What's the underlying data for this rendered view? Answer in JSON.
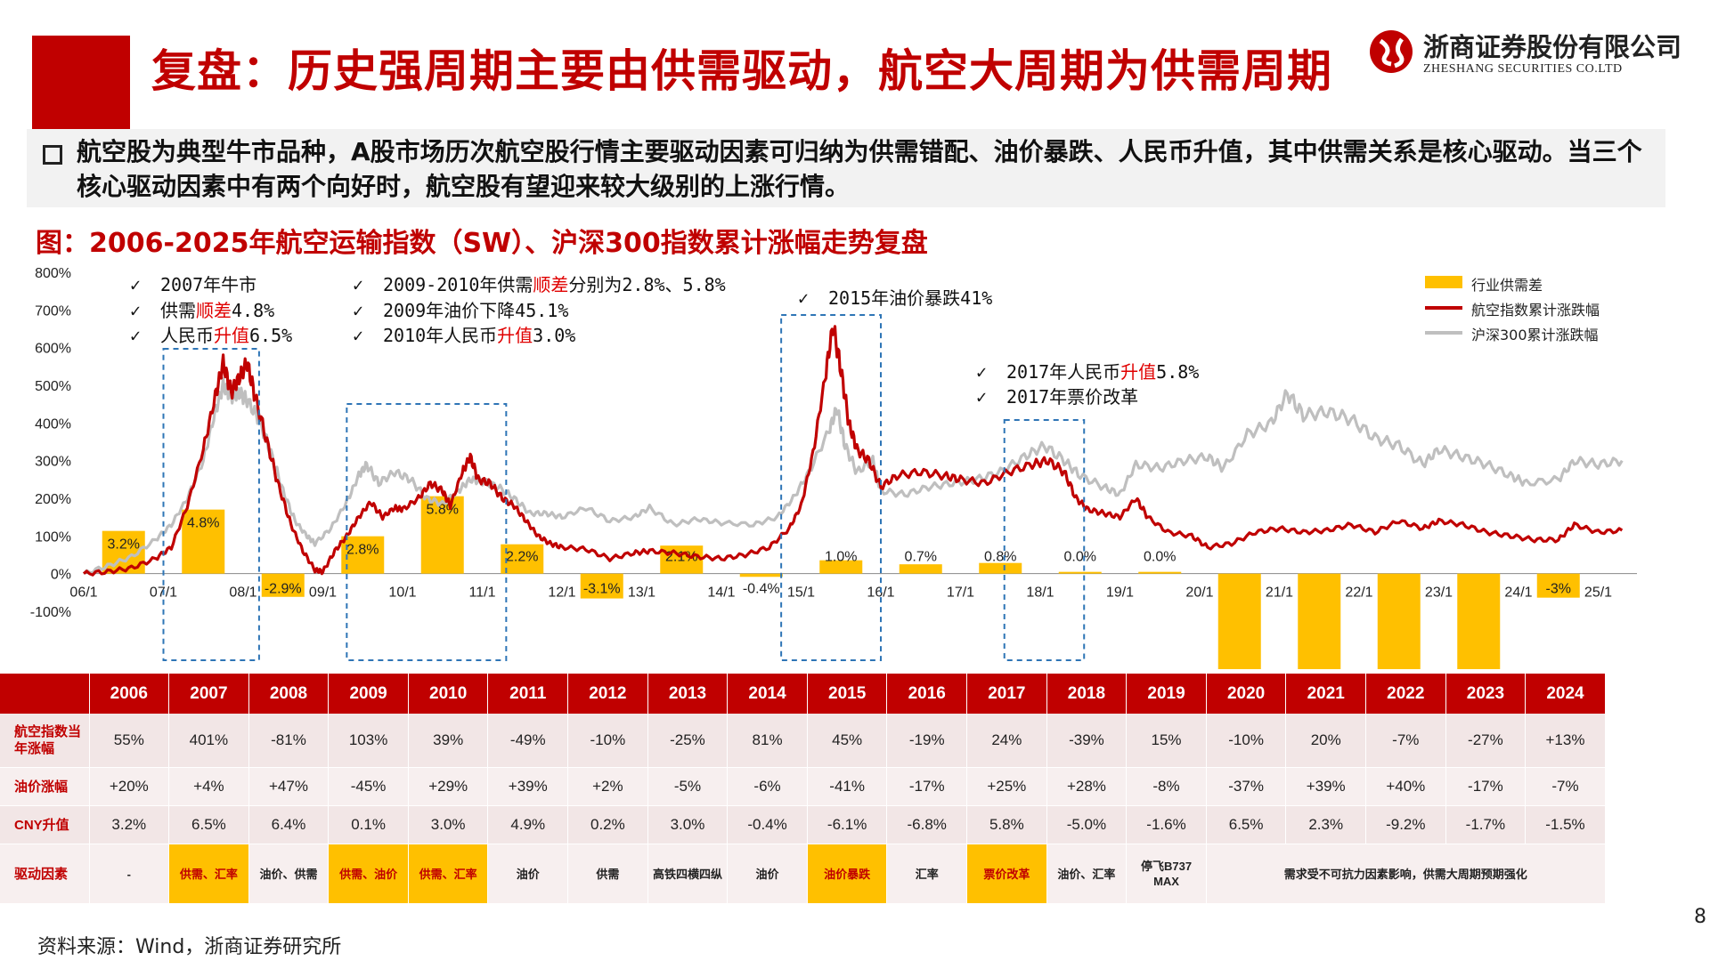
{
  "header": {
    "title": "复盘：历史强周期主要由供需驱动，航空大周期为供需周期",
    "logo_cn": "浙商证券股份有限公司",
    "logo_en": "ZHESHANG SECURITIES CO.LTD"
  },
  "summary": {
    "text": "航空股为典型牛市品种，A股市场历次航空股行情主要驱动因素可归纳为供需错配、油价暴跌、人民币升值，其中供需关系是核心驱动。当三个核心驱动因素中有两个向好时，航空股有望迎来较大级别的上涨行情。"
  },
  "figure": {
    "title": "图：2006-2025年航空运输指数（SW）、沪深300指数累计涨幅走势复盘"
  },
  "annotations": {
    "a2007_1": "2007年牛市",
    "a2007_2a": "供需",
    "a2007_2b": "顺差",
    "a2007_2c": "4.8%",
    "a2007_3a": "人民币",
    "a2007_3b": "升值",
    "a2007_3c": "6.5%",
    "a2009_1a": "2009-2010年供需",
    "a2009_1b": "顺差",
    "a2009_1c": "分别为2.8%、5.8%",
    "a2009_2": "2009年油价下降45.1%",
    "a2009_3a": "2010年人民币",
    "a2009_3b": "升值",
    "a2009_3c": "3.0%",
    "a2015_1": "2015年油价暴跌41%",
    "a2017_1a": "2017年人民币",
    "a2017_1b": "升值",
    "a2017_1c": "5.8%",
    "a2017_2": "2017年票价改革",
    "check": "✓"
  },
  "legend": {
    "supply": "行业供需差",
    "airline": "航空指数累计涨跌幅",
    "hs300": "沪深300累计涨跌幅"
  },
  "colors": {
    "red": "#C00000",
    "bar": "#FFC000",
    "gray": "#BFBFBF",
    "blue": "#2E75B6"
  },
  "chart_data": {
    "type": "line",
    "ylim": [
      -100,
      800
    ],
    "yticks": [
      "800%",
      "700%",
      "600%",
      "500%",
      "400%",
      "300%",
      "200%",
      "100%",
      "0%",
      "-100%"
    ],
    "xticks": [
      "06/1",
      "07/1",
      "08/1",
      "09/1",
      "10/1",
      "11/1",
      "12/1",
      "13/1",
      "14/1",
      "15/1",
      "16/1",
      "17/1",
      "18/1",
      "19/1",
      "20/1",
      "21/1",
      "22/1",
      "23/1",
      "24/1",
      "25/1"
    ],
    "supply_gap": {
      "name": "行业供需差",
      "years": [
        2006,
        2007,
        2008,
        2009,
        2010,
        2011,
        2012,
        2013,
        2014,
        2015,
        2016,
        2017,
        2018,
        2019,
        2020,
        2021,
        2022,
        2023,
        2024
      ],
      "labels": [
        "3.2%",
        "4.8%",
        "-2.9%",
        "2.8%",
        "5.8%",
        "2.2%",
        "-3.1%",
        "2.1%",
        "-0.4%",
        "1.0%",
        "0.7%",
        "0.8%",
        "0.0%",
        "0.0%",
        "",
        "",
        "",
        "",
        "-3%"
      ]
    },
    "series": [
      {
        "name": "航空指数累计涨跌幅",
        "points": [
          [
            2006.0,
            0
          ],
          [
            2006.3,
            5
          ],
          [
            2006.6,
            15
          ],
          [
            2006.9,
            40
          ],
          [
            2007.1,
            70
          ],
          [
            2007.3,
            180
          ],
          [
            2007.5,
            330
          ],
          [
            2007.65,
            470
          ],
          [
            2007.75,
            560
          ],
          [
            2007.85,
            480
          ],
          [
            2007.95,
            520
          ],
          [
            2008.05,
            560
          ],
          [
            2008.15,
            470
          ],
          [
            2008.3,
            350
          ],
          [
            2008.45,
            230
          ],
          [
            2008.6,
            130
          ],
          [
            2008.75,
            60
          ],
          [
            2008.9,
            10
          ],
          [
            2009.0,
            5
          ],
          [
            2009.15,
            60
          ],
          [
            2009.3,
            100
          ],
          [
            2009.45,
            150
          ],
          [
            2009.6,
            190
          ],
          [
            2009.75,
            150
          ],
          [
            2009.9,
            175
          ],
          [
            2010.0,
            170
          ],
          [
            2010.2,
            200
          ],
          [
            2010.35,
            240
          ],
          [
            2010.5,
            220
          ],
          [
            2010.6,
            180
          ],
          [
            2010.75,
            270
          ],
          [
            2010.85,
            310
          ],
          [
            2010.95,
            250
          ],
          [
            2011.1,
            240
          ],
          [
            2011.25,
            200
          ],
          [
            2011.4,
            180
          ],
          [
            2011.55,
            140
          ],
          [
            2011.7,
            100
          ],
          [
            2011.85,
            80
          ],
          [
            2012.0,
            70
          ],
          [
            2012.3,
            65
          ],
          [
            2012.6,
            40
          ],
          [
            2012.9,
            55
          ],
          [
            2013.1,
            60
          ],
          [
            2013.4,
            55
          ],
          [
            2013.7,
            45
          ],
          [
            2014.0,
            40
          ],
          [
            2014.3,
            50
          ],
          [
            2014.6,
            70
          ],
          [
            2014.85,
            120
          ],
          [
            2015.0,
            180
          ],
          [
            2015.15,
            320
          ],
          [
            2015.3,
            520
          ],
          [
            2015.4,
            660
          ],
          [
            2015.5,
            540
          ],
          [
            2015.6,
            400
          ],
          [
            2015.7,
            330
          ],
          [
            2015.85,
            300
          ],
          [
            2016.0,
            230
          ],
          [
            2016.2,
            260
          ],
          [
            2016.5,
            270
          ],
          [
            2016.8,
            260
          ],
          [
            2017.0,
            250
          ],
          [
            2017.3,
            240
          ],
          [
            2017.6,
            270
          ],
          [
            2017.9,
            290
          ],
          [
            2018.1,
            300
          ],
          [
            2018.3,
            270
          ],
          [
            2018.45,
            200
          ],
          [
            2018.6,
            170
          ],
          [
            2018.8,
            160
          ],
          [
            2019.0,
            150
          ],
          [
            2019.2,
            200
          ],
          [
            2019.35,
            150
          ],
          [
            2019.6,
            110
          ],
          [
            2019.9,
            100
          ],
          [
            2020.1,
            70
          ],
          [
            2020.4,
            80
          ],
          [
            2020.7,
            110
          ],
          [
            2021.0,
            120
          ],
          [
            2021.3,
            110
          ],
          [
            2021.6,
            115
          ],
          [
            2021.9,
            130
          ],
          [
            2022.2,
            110
          ],
          [
            2022.5,
            140
          ],
          [
            2022.8,
            120
          ],
          [
            2023.0,
            140
          ],
          [
            2023.3,
            130
          ],
          [
            2023.6,
            110
          ],
          [
            2023.9,
            100
          ],
          [
            2024.2,
            90
          ],
          [
            2024.5,
            90
          ],
          [
            2024.7,
            130
          ],
          [
            2025.0,
            110
          ],
          [
            2025.3,
            115
          ]
        ]
      },
      {
        "name": "沪深300累计涨跌幅",
        "points": [
          [
            2006.0,
            0
          ],
          [
            2006.3,
            20
          ],
          [
            2006.6,
            45
          ],
          [
            2006.9,
            90
          ],
          [
            2007.1,
            130
          ],
          [
            2007.3,
            200
          ],
          [
            2007.5,
            300
          ],
          [
            2007.65,
            430
          ],
          [
            2007.75,
            500
          ],
          [
            2007.85,
            470
          ],
          [
            2007.95,
            480
          ],
          [
            2008.05,
            460
          ],
          [
            2008.2,
            410
          ],
          [
            2008.35,
            320
          ],
          [
            2008.5,
            220
          ],
          [
            2008.65,
            140
          ],
          [
            2008.8,
            100
          ],
          [
            2008.9,
            80
          ],
          [
            2009.1,
            120
          ],
          [
            2009.3,
            190
          ],
          [
            2009.45,
            260
          ],
          [
            2009.55,
            290
          ],
          [
            2009.7,
            240
          ],
          [
            2009.9,
            270
          ],
          [
            2010.1,
            250
          ],
          [
            2010.3,
            200
          ],
          [
            2010.5,
            185
          ],
          [
            2010.7,
            220
          ],
          [
            2010.85,
            250
          ],
          [
            2011.0,
            245
          ],
          [
            2011.2,
            230
          ],
          [
            2011.4,
            200
          ],
          [
            2011.6,
            160
          ],
          [
            2011.8,
            160
          ],
          [
            2012.0,
            150
          ],
          [
            2012.3,
            175
          ],
          [
            2012.6,
            140
          ],
          [
            2012.9,
            150
          ],
          [
            2013.1,
            175
          ],
          [
            2013.4,
            130
          ],
          [
            2013.7,
            145
          ],
          [
            2014.0,
            135
          ],
          [
            2014.4,
            130
          ],
          [
            2014.7,
            150
          ],
          [
            2014.9,
            200
          ],
          [
            2015.1,
            270
          ],
          [
            2015.35,
            380
          ],
          [
            2015.45,
            440
          ],
          [
            2015.55,
            340
          ],
          [
            2015.7,
            270
          ],
          [
            2015.9,
            300
          ],
          [
            2016.0,
            220
          ],
          [
            2016.3,
            210
          ],
          [
            2016.6,
            230
          ],
          [
            2016.9,
            240
          ],
          [
            2017.2,
            250
          ],
          [
            2017.5,
            270
          ],
          [
            2017.8,
            310
          ],
          [
            2018.05,
            340
          ],
          [
            2018.3,
            300
          ],
          [
            2018.5,
            260
          ],
          [
            2018.8,
            230
          ],
          [
            2019.0,
            210
          ],
          [
            2019.2,
            290
          ],
          [
            2019.5,
            280
          ],
          [
            2019.8,
            300
          ],
          [
            2020.1,
            310
          ],
          [
            2020.3,
            280
          ],
          [
            2020.6,
            370
          ],
          [
            2020.9,
            400
          ],
          [
            2021.1,
            480
          ],
          [
            2021.3,
            420
          ],
          [
            2021.6,
            430
          ],
          [
            2021.9,
            410
          ],
          [
            2022.2,
            360
          ],
          [
            2022.5,
            340
          ],
          [
            2022.8,
            290
          ],
          [
            2023.0,
            330
          ],
          [
            2023.3,
            310
          ],
          [
            2023.6,
            290
          ],
          [
            2023.9,
            260
          ],
          [
            2024.1,
            240
          ],
          [
            2024.5,
            250
          ],
          [
            2024.7,
            300
          ],
          [
            2025.0,
            290
          ],
          [
            2025.3,
            300
          ]
        ]
      }
    ]
  },
  "table": {
    "years": [
      "2006",
      "2007",
      "2008",
      "2009",
      "2010",
      "2011",
      "2012",
      "2013",
      "2014",
      "2015",
      "2016",
      "2017",
      "2018",
      "2019",
      "2020",
      "2021",
      "2022",
      "2023",
      "2024"
    ],
    "row_labels": [
      "航空指数当年涨幅",
      "油价涨幅",
      "CNY升值",
      "驱动因素"
    ],
    "index_change": [
      "55%",
      "401%",
      "-81%",
      "103%",
      "39%",
      "-49%",
      "-10%",
      "-25%",
      "81%",
      "45%",
      "-19%",
      "24%",
      "-39%",
      "15%",
      "-10%",
      "20%",
      "-7%",
      "-27%",
      "+13%"
    ],
    "oil_change": [
      "+20%",
      "+4%",
      "+47%",
      "-45%",
      "+29%",
      "+39%",
      "+2%",
      "-5%",
      "-6%",
      "-41%",
      "-17%",
      "+25%",
      "+28%",
      "-8%",
      "-37%",
      "+39%",
      "+40%",
      "-17%",
      "-7%"
    ],
    "cny": [
      "3.2%",
      "6.5%",
      "6.4%",
      "0.1%",
      "3.0%",
      "4.9%",
      "0.2%",
      "3.0%",
      "-0.4%",
      "-6.1%",
      "-6.8%",
      "5.8%",
      "-5.0%",
      "-1.6%",
      "6.5%",
      "2.3%",
      "-9.2%",
      "-1.7%",
      "-1.5%"
    ],
    "drivers": [
      "-",
      "供需、汇率",
      "油价、供需",
      "供需、油价",
      "供需、汇率",
      "油价",
      "供需",
      "高铁四横四纵",
      "油价",
      "油价暴跌",
      "汇率",
      "票价改革",
      "油价、汇率",
      "停飞B737 MAX",
      "需求受不可抗力因素影响，供需大周期预期强化"
    ]
  },
  "footer": {
    "source": "资料来源：Wind，浙商证券研究所",
    "page": "8"
  }
}
